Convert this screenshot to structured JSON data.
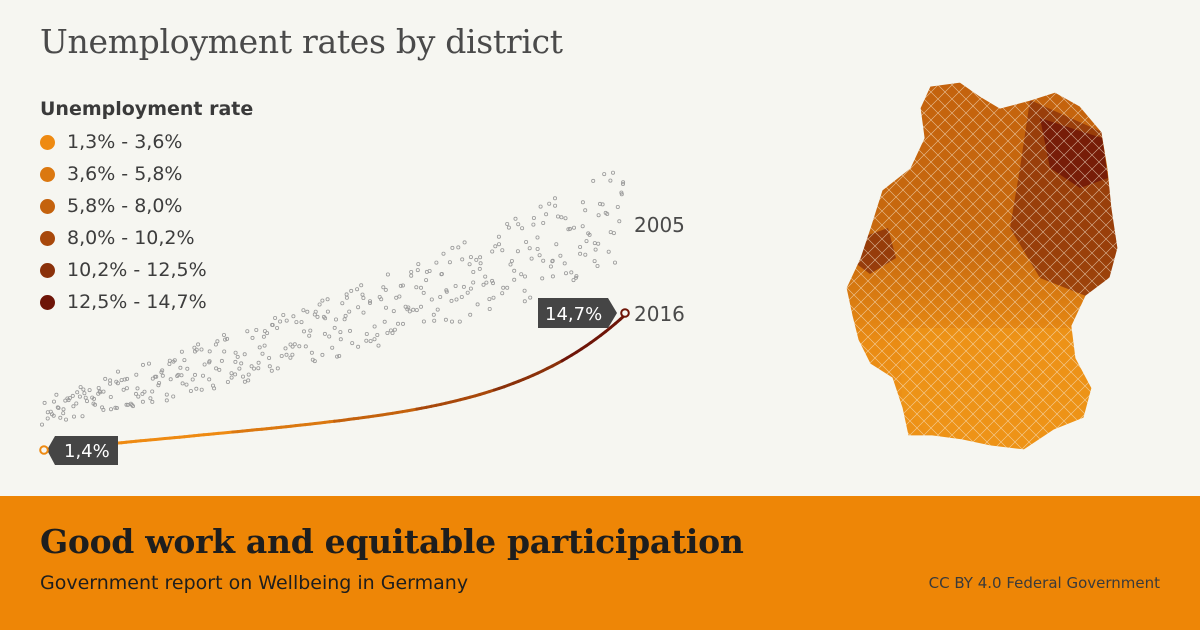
{
  "header": {
    "title": "Unemployment rates by district"
  },
  "legend": {
    "title": "Unemployment rate",
    "items": [
      {
        "label": "1,3% - 3,6%",
        "color": "#ee8a12"
      },
      {
        "label": "3,6% - 5,8%",
        "color": "#db7810"
      },
      {
        "label": "5,8% - 8,0%",
        "color": "#c4620d"
      },
      {
        "label": "8,0% - 10,2%",
        "color": "#a8480b"
      },
      {
        "label": "10,2% - 12,5%",
        "color": "#8a310a"
      },
      {
        "label": "12,5% - 14,7%",
        "color": "#6e1508"
      }
    ]
  },
  "chart_data": {
    "type": "scatter",
    "series": [
      {
        "name": "2005",
        "style": "gray-hollow-dots",
        "values_range": [
          3.5,
          25
        ],
        "trend": "increasing"
      },
      {
        "name": "2016",
        "style": "line-colored-by-rate",
        "values_range": [
          1.4,
          14.7
        ],
        "trend": "increasing"
      }
    ],
    "annotations": [
      {
        "label": "1,4%",
        "value": 1.4,
        "series": "2016",
        "position": "start"
      },
      {
        "label": "14,7%",
        "value": 14.7,
        "series": "2016",
        "position": "end"
      }
    ],
    "xlabel": "",
    "ylabel": "",
    "grid": false
  },
  "map": {
    "icon": "germany-districts-map-icon"
  },
  "footer": {
    "title": "Good work and equitable participation",
    "subtitle": "Government report on Wellbeing in Germany",
    "credit": "CC BY 4.0 Federal Government",
    "background": "#ee8606"
  }
}
